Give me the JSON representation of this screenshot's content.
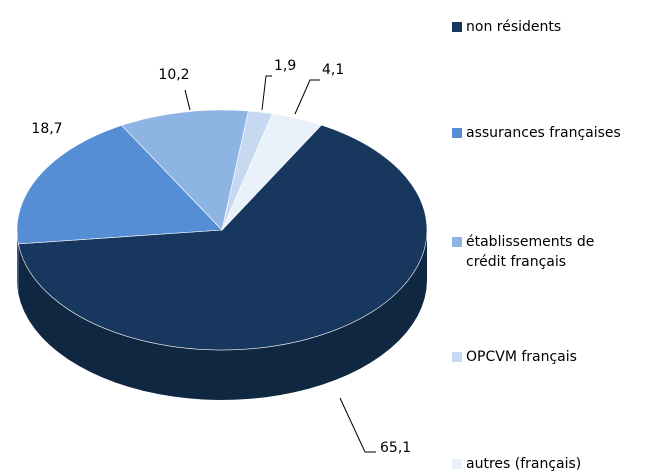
{
  "chart_data": {
    "type": "pie",
    "categories": [
      "non résidents",
      "assurances françaises",
      "établissements de crédit français",
      "OPCVM français",
      "autres (français)"
    ],
    "values": [
      65.1,
      18.7,
      10.2,
      1.9,
      4.1
    ],
    "value_labels": [
      "65,1",
      "18,7",
      "10,2",
      "1,9",
      "4,1"
    ],
    "colors": [
      "#17375e",
      "#558ed5",
      "#8eb4e3",
      "#c6d9f1",
      "#e9f2fa"
    ]
  }
}
